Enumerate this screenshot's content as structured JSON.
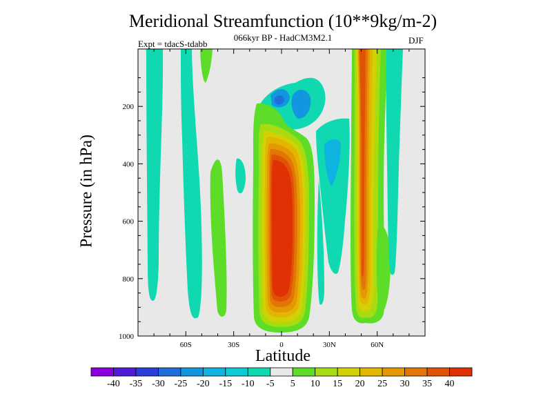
{
  "chart_data": {
    "type": "contour",
    "title": "Meridional Streamfunction (10**9kg/m-2)",
    "subtitle": "066kyr BP - HadCM3M2.1",
    "experiment": "Expt = tdacS-tdabb",
    "season": "DJF",
    "xlabel": "Latitude",
    "ylabel": "Pressure (in hPa)",
    "xlim": [
      -90,
      90
    ],
    "ylim": [
      1000,
      0
    ],
    "xticks": [
      {
        "value": -60,
        "label": "60S"
      },
      {
        "value": -30,
        "label": "30S"
      },
      {
        "value": 0,
        "label": "0"
      },
      {
        "value": 30,
        "label": "30N"
      },
      {
        "value": 60,
        "label": "60N"
      }
    ],
    "yticks": [
      {
        "value": 200,
        "label": "200"
      },
      {
        "value": 400,
        "label": "400"
      },
      {
        "value": 600,
        "label": "600"
      },
      {
        "value": 800,
        "label": "800"
      },
      {
        "value": 1000,
        "label": "1000"
      }
    ],
    "colorbar": {
      "boundaries": [
        -40,
        -35,
        -30,
        -25,
        -20,
        -15,
        -10,
        -5,
        5,
        10,
        15,
        20,
        25,
        30,
        35,
        40
      ],
      "labels": [
        "-40",
        "-35",
        "-30",
        "-25",
        "-20",
        "-15",
        "-10",
        "-5",
        "5",
        "10",
        "15",
        "20",
        "25",
        "30",
        "35",
        "40"
      ],
      "colors": [
        "#8a00e0",
        "#4e1cd8",
        "#2a3fd9",
        "#1f6edb",
        "#1296e0",
        "#0fb3e0",
        "#0ccad6",
        "#10d8b0",
        "#e8e8e8",
        "#5ddc28",
        "#a6dc10",
        "#d1d106",
        "#e2b702",
        "#e49904",
        "#e27506",
        "#e05306",
        "#df3104"
      ]
    },
    "features": [
      {
        "name": "Tropical positive cell",
        "lat_range": [
          -10,
          8
        ],
        "p_range": [
          300,
          960
        ],
        "peak": 40
      },
      {
        "name": "Northern subtropical positive band",
        "lat_range": [
          48,
          62
        ],
        "p_range": [
          0,
          960
        ],
        "peak": 40
      },
      {
        "name": "Southern high-latitude negative band",
        "lat_range": [
          -88,
          -82
        ],
        "p_range": [
          0,
          900
        ],
        "peak": -10
      },
      {
        "name": "Southern mid-latitude negative band",
        "lat_range": [
          -68,
          -60
        ],
        "p_range": [
          0,
          960
        ],
        "peak": -10
      },
      {
        "name": "Upper-tropospheric negative patch",
        "lat_range": [
          -5,
          25
        ],
        "p_range": [
          100,
          300
        ],
        "peak": -20
      },
      {
        "name": "Northern negative band",
        "lat_range": [
          15,
          42
        ],
        "p_range": [
          150,
          900
        ],
        "peak": -15
      },
      {
        "name": "Southern weak positive band",
        "lat_range": [
          -45,
          -38
        ],
        "p_range": [
          300,
          960
        ],
        "peak": 10
      }
    ]
  }
}
